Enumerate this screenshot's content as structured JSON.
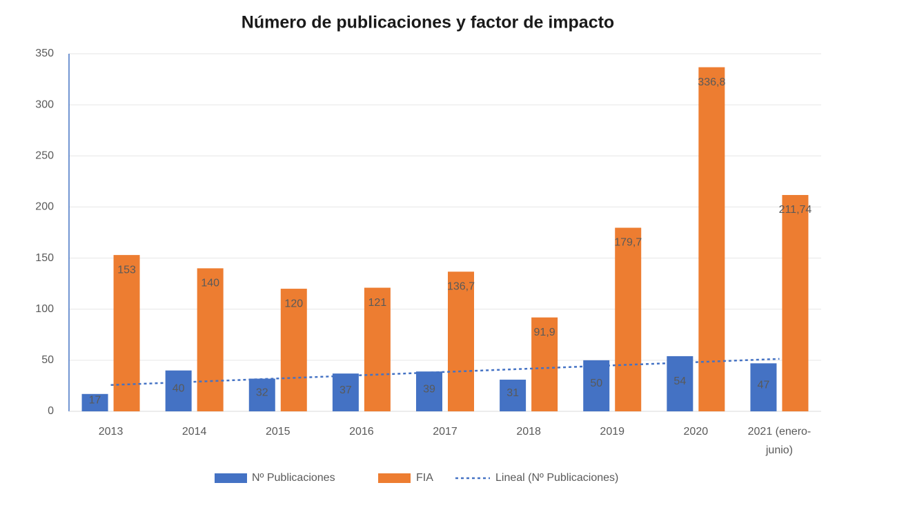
{
  "chart_data": {
    "type": "bar",
    "title": "Número de publicaciones y factor de impacto",
    "categories": [
      "2013",
      "2014",
      "2015",
      "2016",
      "2017",
      "2018",
      "2019",
      "2020",
      "2021 (enero-junio)"
    ],
    "series": [
      {
        "name": "Nº Publicaciones",
        "color": "#4472c4",
        "values": [
          17,
          40,
          32,
          37,
          39,
          31,
          50,
          54,
          47
        ]
      },
      {
        "name": "FIA",
        "color": "#ed7d31",
        "values": [
          153,
          140,
          120,
          121,
          136.7,
          91.9,
          179.7,
          336.8,
          211.74
        ],
        "value_labels": [
          "153",
          "140",
          "120",
          "121",
          "136,7",
          "91,9",
          "179,7",
          "336,8",
          "211,74"
        ]
      }
    ],
    "trendline": {
      "name": "Lineal (Nº Publicaciones)",
      "color": "#4472c4"
    },
    "ylim": [
      0,
      350
    ],
    "yticks": [
      0,
      50,
      100,
      150,
      200,
      250,
      300,
      350
    ],
    "grid": true
  }
}
